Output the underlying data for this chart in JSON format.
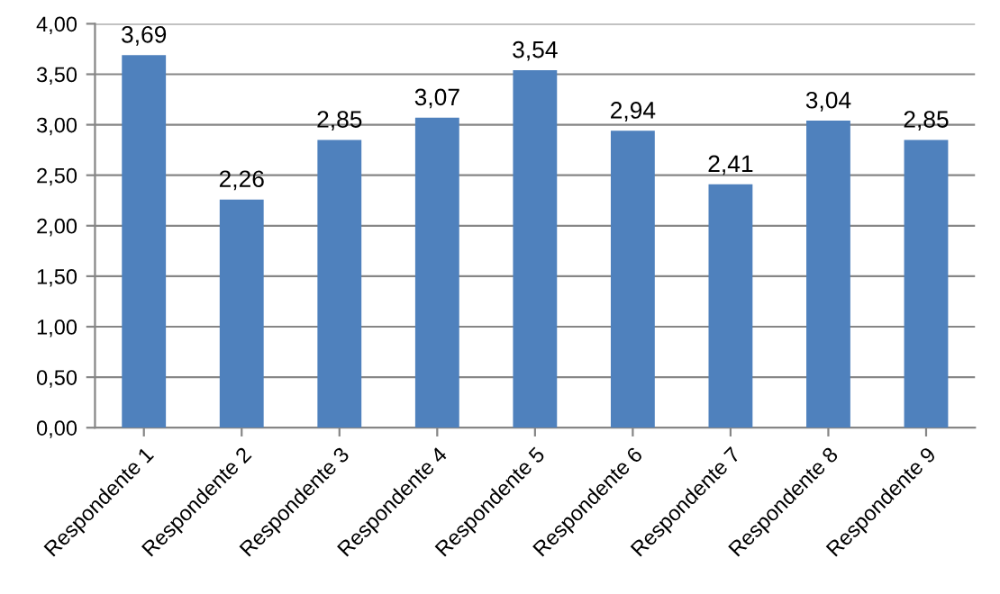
{
  "chart_data": {
    "type": "bar",
    "categories": [
      "Respondente 1",
      "Respondente 2",
      "Respondente 3",
      "Respondente 4",
      "Respondente 5",
      "Respondente 6",
      "Respondente 7",
      "Respondente 8",
      "Respondente 9"
    ],
    "values": [
      3.69,
      2.26,
      2.85,
      3.07,
      3.54,
      2.94,
      2.41,
      3.04,
      2.85
    ],
    "value_labels": [
      "3,69",
      "2,26",
      "2,85",
      "3,07",
      "3,54",
      "2,94",
      "2,41",
      "3,04",
      "2,85"
    ],
    "color": "#4f81bd",
    "ylim": [
      0,
      4
    ],
    "yticks": [
      {
        "value": 0,
        "label": "0,00"
      },
      {
        "value": 0.5,
        "label": "0,50"
      },
      {
        "value": 1,
        "label": "1,00"
      },
      {
        "value": 1.5,
        "label": "1,50"
      },
      {
        "value": 2,
        "label": "2,00"
      },
      {
        "value": 2.5,
        "label": "2,50"
      },
      {
        "value": 3,
        "label": "3,00"
      },
      {
        "value": 3.5,
        "label": "3,50"
      },
      {
        "value": 4,
        "label": "4,00"
      }
    ],
    "grid": "y",
    "legend": false
  }
}
